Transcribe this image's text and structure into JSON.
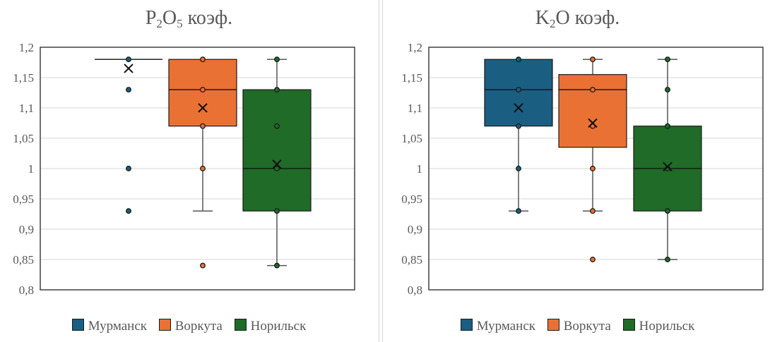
{
  "colors": {
    "Мурманск": "#1a5e82",
    "Воркута": "#ea7134",
    "Норильск": "#1f6b27",
    "grid": "#e3e3e3",
    "axis": "#404040"
  },
  "legend": [
    "Мурманск",
    "Воркута",
    "Норильск"
  ],
  "charts": [
    {
      "title_main": "P",
      "title_sub1": "2",
      "title_mid": "O",
      "title_sub2": "5",
      "title_rest": " коэф."
    },
    {
      "title_main": "K",
      "title_sub1": "2",
      "title_mid": "O",
      "title_sub2": "",
      "title_rest": " коэф."
    }
  ],
  "chart_data": [
    {
      "type": "boxplot",
      "title": "P2O5 коэф.",
      "xlabel": "",
      "ylabel": "",
      "ylim": [
        0.8,
        1.2
      ],
      "yticks": [
        0.8,
        0.85,
        0.9,
        0.95,
        1.0,
        1.05,
        1.1,
        1.15,
        1.2
      ],
      "ytick_labels": [
        "0,8",
        "0,85",
        "0,9",
        "0,95",
        "1",
        "1,05",
        "1,1",
        "1,15",
        "1,2"
      ],
      "grid": true,
      "legend_position": "bottom",
      "series": [
        {
          "name": "Мурманск",
          "q1": 1.18,
          "median": 1.18,
          "q3": 1.18,
          "whisker_low": 1.18,
          "whisker_high": 1.18,
          "mean": 1.165,
          "points": [
            1.18,
            1.13,
            1.0,
            0.93
          ],
          "outliers": [
            1.13,
            1.0,
            0.93
          ]
        },
        {
          "name": "Воркута",
          "q1": 1.07,
          "median": 1.13,
          "q3": 1.18,
          "whisker_low": 0.93,
          "whisker_high": 1.18,
          "mean": 1.1,
          "points": [
            1.18,
            1.13,
            1.07,
            1.0
          ],
          "outliers": [
            0.84
          ]
        },
        {
          "name": "Норильск",
          "q1": 0.93,
          "median": 1.0,
          "q3": 1.13,
          "whisker_low": 0.84,
          "whisker_high": 1.18,
          "mean": 1.007,
          "points": [
            1.18,
            1.13,
            1.07,
            1.0,
            0.93,
            0.84
          ],
          "outliers": []
        }
      ]
    },
    {
      "type": "boxplot",
      "title": "K2O коэф.",
      "xlabel": "",
      "ylabel": "",
      "ylim": [
        0.8,
        1.2
      ],
      "yticks": [
        0.8,
        0.85,
        0.9,
        0.95,
        1.0,
        1.05,
        1.1,
        1.15,
        1.2
      ],
      "ytick_labels": [
        "0,8",
        "0,85",
        "0,9",
        "0,95",
        "1",
        "1,05",
        "1,1",
        "1,15",
        "1,2"
      ],
      "grid": true,
      "legend_position": "bottom",
      "series": [
        {
          "name": "Мурманск",
          "q1": 1.07,
          "median": 1.13,
          "q3": 1.18,
          "whisker_low": 0.93,
          "whisker_high": 1.18,
          "mean": 1.1,
          "points": [
            1.18,
            1.13,
            1.07,
            1.0,
            0.93
          ],
          "outliers": []
        },
        {
          "name": "Воркута",
          "q1": 1.035,
          "median": 1.13,
          "q3": 1.155,
          "whisker_low": 0.93,
          "whisker_high": 1.18,
          "mean": 1.075,
          "points": [
            1.18,
            1.13,
            1.07,
            1.0,
            0.93
          ],
          "outliers": [
            0.85
          ]
        },
        {
          "name": "Норильск",
          "q1": 0.93,
          "median": 1.0,
          "q3": 1.07,
          "whisker_low": 0.85,
          "whisker_high": 1.18,
          "mean": 1.003,
          "points": [
            1.18,
            1.13,
            1.07,
            1.0,
            0.93,
            0.85
          ],
          "outliers": []
        }
      ]
    }
  ]
}
